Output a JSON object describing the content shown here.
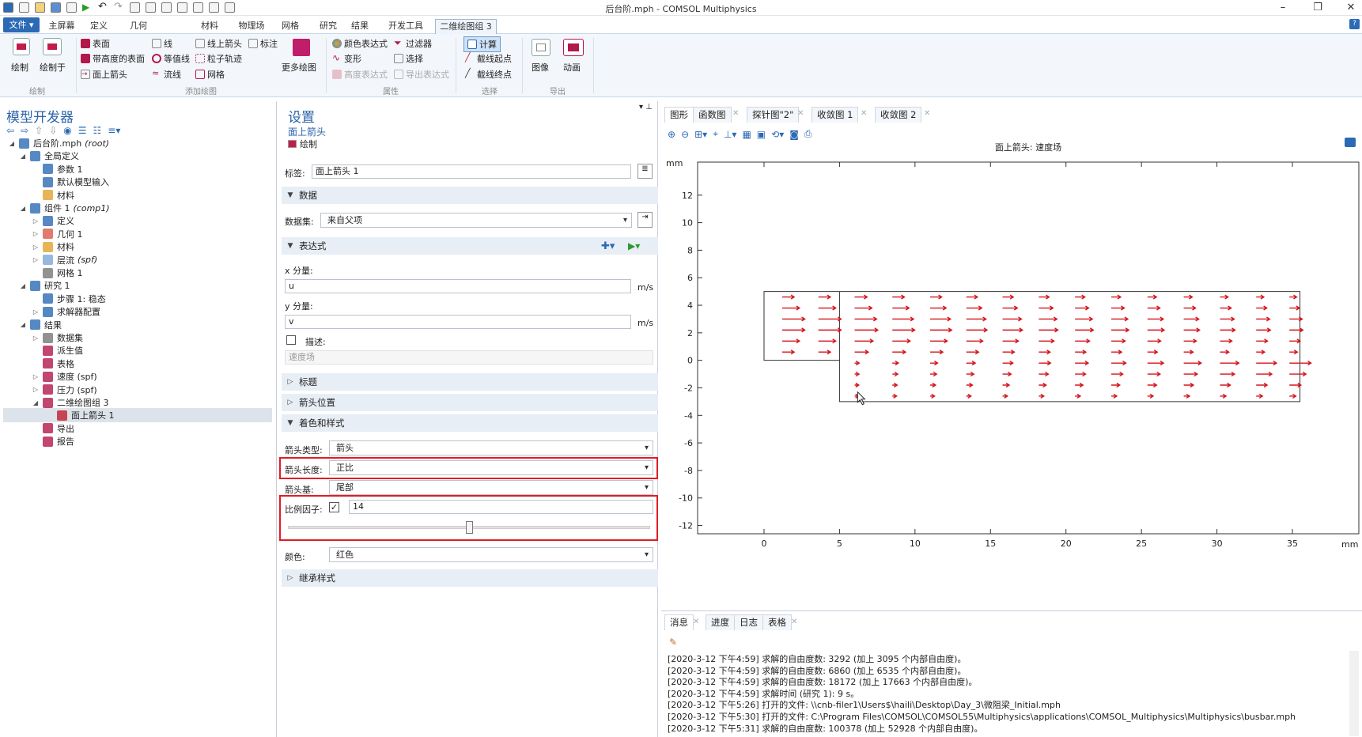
{
  "window": {
    "title": "后台阶.mph - COMSOL Multiphysics"
  },
  "menu": {
    "file": "文件 ▾",
    "tabs": [
      "主屏幕",
      "定义",
      "几何",
      "材料",
      "物理场",
      "网格",
      "研究",
      "结果",
      "开发工具",
      "二维绘图组 3"
    ]
  },
  "ribbon": {
    "plot": "绘制",
    "plot_in": "绘制于",
    "add_plot": [
      "表面",
      "线",
      "线上箭头",
      "标注",
      "带高度的表面",
      "等值线",
      "粒子轨迹",
      "面上箭头",
      "流线",
      "网格"
    ],
    "more_plots": "更多绘图",
    "attributes": [
      "颜色表达式",
      "过滤器",
      "变形",
      "选择",
      "高度表达式",
      "导出表达式"
    ],
    "compute": "计算",
    "cut_start": "截线起点",
    "cut_end": "截线终点",
    "image": "图像",
    "animation": "动画",
    "groups": {
      "plot": "绘制",
      "add_plot": "添加绘图",
      "attributes": "属性",
      "selection": "选择",
      "export": "导出"
    }
  },
  "model_builder": {
    "title": "模型开发器",
    "tree": [
      {
        "label": "后台阶.mph",
        "tag": "(root)"
      },
      {
        "label": "全局定义"
      },
      {
        "label": "参数 1"
      },
      {
        "label": "默认模型输入"
      },
      {
        "label": "材料"
      },
      {
        "label": "组件 1",
        "tag": "(comp1)"
      },
      {
        "label": "定义"
      },
      {
        "label": "几何 1"
      },
      {
        "label": "材料"
      },
      {
        "label": "层流",
        "tag": "(spf)"
      },
      {
        "label": "网格 1"
      },
      {
        "label": "研究 1"
      },
      {
        "label": "步骤 1: 稳态"
      },
      {
        "label": "求解器配置"
      },
      {
        "label": "结果"
      },
      {
        "label": "数据集"
      },
      {
        "label": "派生值"
      },
      {
        "label": "表格"
      },
      {
        "label": "速度 (spf)"
      },
      {
        "label": "压力 (spf)"
      },
      {
        "label": "二维绘图组 3"
      },
      {
        "label": "面上箭头 1"
      },
      {
        "label": "导出"
      },
      {
        "label": "报告"
      }
    ]
  },
  "settings": {
    "title": "设置",
    "subtitle": "面上箭头",
    "plot": "绘制",
    "label_caption": "标签:",
    "label_value": "面上箭头 1",
    "sec_data": "数据",
    "dataset_caption": "数据集:",
    "dataset_value": "来自父项",
    "sec_expr": "表达式",
    "x_caption": "x 分量:",
    "x_value": "u",
    "x_unit": "m/s",
    "y_caption": "y 分量:",
    "y_value": "v",
    "y_unit": "m/s",
    "desc_caption": "描述:",
    "desc_value": "速度场",
    "sec_title": "标题",
    "sec_arrowpos": "箭头位置",
    "sec_color": "着色和样式",
    "arrow_type_caption": "箭头类型:",
    "arrow_type_value": "箭头",
    "arrow_len_caption": "箭头长度:",
    "arrow_len_value": "正比",
    "arrow_base_caption": "箭头基:",
    "arrow_base_value": "尾部",
    "scale_caption": "比例因子:",
    "scale_value": "14",
    "scale_slider": 0.5,
    "color_caption": "颜色:",
    "color_value": "红色",
    "sec_inherit": "继承样式"
  },
  "graphics": {
    "tabs": [
      "图形",
      "函数图",
      "探针图\"2\"",
      "收敛图 1",
      "收敛图 2"
    ],
    "plot_title": "面上箭头: 速度场",
    "axis_unit": "mm"
  },
  "chart_data": {
    "type": "scatter",
    "title": "面上箭头: 速度场",
    "x_ticks": [
      0,
      5,
      10,
      15,
      20,
      25,
      30,
      35
    ],
    "y_ticks": [
      12,
      10,
      8,
      6,
      4,
      2,
      0,
      -2,
      -4,
      -6,
      -8,
      -10,
      -12
    ],
    "xlim": [
      -4.4,
      39.4
    ],
    "ylim": [
      -12.6,
      14.4
    ],
    "x_unit": "mm",
    "y_unit": "mm",
    "arrow_color": "#d4141c",
    "grid": false
  },
  "messages": {
    "tabs": [
      "消息",
      "进度",
      "日志",
      "表格"
    ],
    "lines": [
      "[2020-3-12 下午4:59] 求解的自由度数: 3292 (加上 3095 个内部自由度)。",
      "[2020-3-12 下午4:59] 求解的自由度数: 6860 (加上 6535 个内部自由度)。",
      "[2020-3-12 下午4:59] 求解的自由度数: 18172 (加上 17663 个内部自由度)。",
      "[2020-3-12 下午4:59] 求解时间 (研究 1): 9 s。",
      "[2020-3-12 下午5:26] 打开的文件: \\\\cnb-filer1\\Users$\\haili\\Desktop\\Day_3\\微阻梁_Initial.mph",
      "[2020-3-12 下午5:30] 打开的文件: C:\\Program Files\\COMSOL\\COMSOL55\\Multiphysics\\applications\\COMSOL_Multiphysics\\Multiphysics\\busbar.mph",
      "[2020-3-12 下午5:31] 求解的自由度数: 100378 (加上 52928 个内部自由度)。"
    ]
  }
}
